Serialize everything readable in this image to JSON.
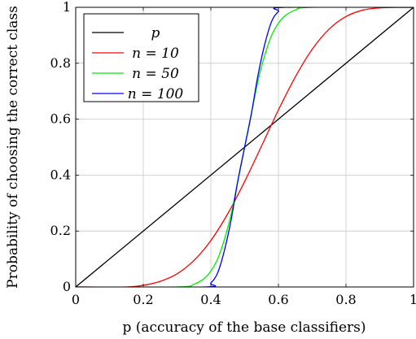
{
  "chart_data": {
    "type": "line",
    "title": "",
    "xlabel": "p (accuracy of the base classifiers)",
    "ylabel": "Probability of choosing the correct class",
    "xlim": [
      0,
      1
    ],
    "ylim": [
      0,
      1
    ],
    "xticks": [
      0,
      0.2,
      0.4,
      0.6,
      0.8,
      1
    ],
    "yticks": [
      0,
      0.2,
      0.4,
      0.6,
      0.8,
      1
    ],
    "xtick_labels": [
      "0",
      "0.2",
      "0.4",
      "0.6",
      "0.8",
      "1"
    ],
    "ytick_labels": [
      "0",
      "0.2",
      "0.4",
      "0.6",
      "0.8",
      "1"
    ],
    "grid": true,
    "legend_position": "top-left",
    "series": [
      {
        "name": "p",
        "color": "#000000",
        "x": [
          0,
          1
        ],
        "y": [
          0,
          1
        ]
      },
      {
        "name": "n = 10",
        "color": "#ff0000",
        "x": [
          0,
          0.15,
          0.2,
          0.25,
          0.3,
          0.35,
          0.4,
          0.45,
          0.5,
          0.55,
          0.6,
          0.65,
          0.7,
          0.75,
          0.8,
          0.85,
          0.9,
          0.95,
          1
        ],
        "y": [
          0,
          0.0,
          0.006,
          0.02,
          0.047,
          0.095,
          0.166,
          0.262,
          0.377,
          0.504,
          0.633,
          0.751,
          0.85,
          0.922,
          0.967,
          0.99,
          0.998,
          1.0,
          1.0
        ]
      },
      {
        "name": "n = 50",
        "color": "#00ee00",
        "x": [
          0,
          0.3,
          0.35,
          0.38,
          0.4,
          0.42,
          0.44,
          0.46,
          0.48,
          0.5,
          0.52,
          0.54,
          0.56,
          0.58,
          0.6,
          0.62,
          0.65,
          0.7,
          1
        ],
        "y": [
          0,
          0.0,
          0.01,
          0.03,
          0.057,
          0.1,
          0.17,
          0.26,
          0.38,
          0.5,
          0.62,
          0.74,
          0.83,
          0.9,
          0.943,
          0.97,
          0.99,
          1.0,
          1.0
        ]
      },
      {
        "name": "n = 100",
        "color": "#0000ff",
        "x": [
          0,
          0.38,
          0.4,
          0.42,
          0.44,
          0.46,
          0.48,
          0.5,
          0.52,
          0.54,
          0.56,
          0.58,
          0.6,
          0.62,
          1
        ],
        "y": [
          0,
          0.0,
          0.014,
          0.05,
          0.13,
          0.24,
          0.38,
          0.5,
          0.62,
          0.76,
          0.87,
          0.95,
          0.985,
          1.0,
          1.0
        ]
      }
    ]
  }
}
